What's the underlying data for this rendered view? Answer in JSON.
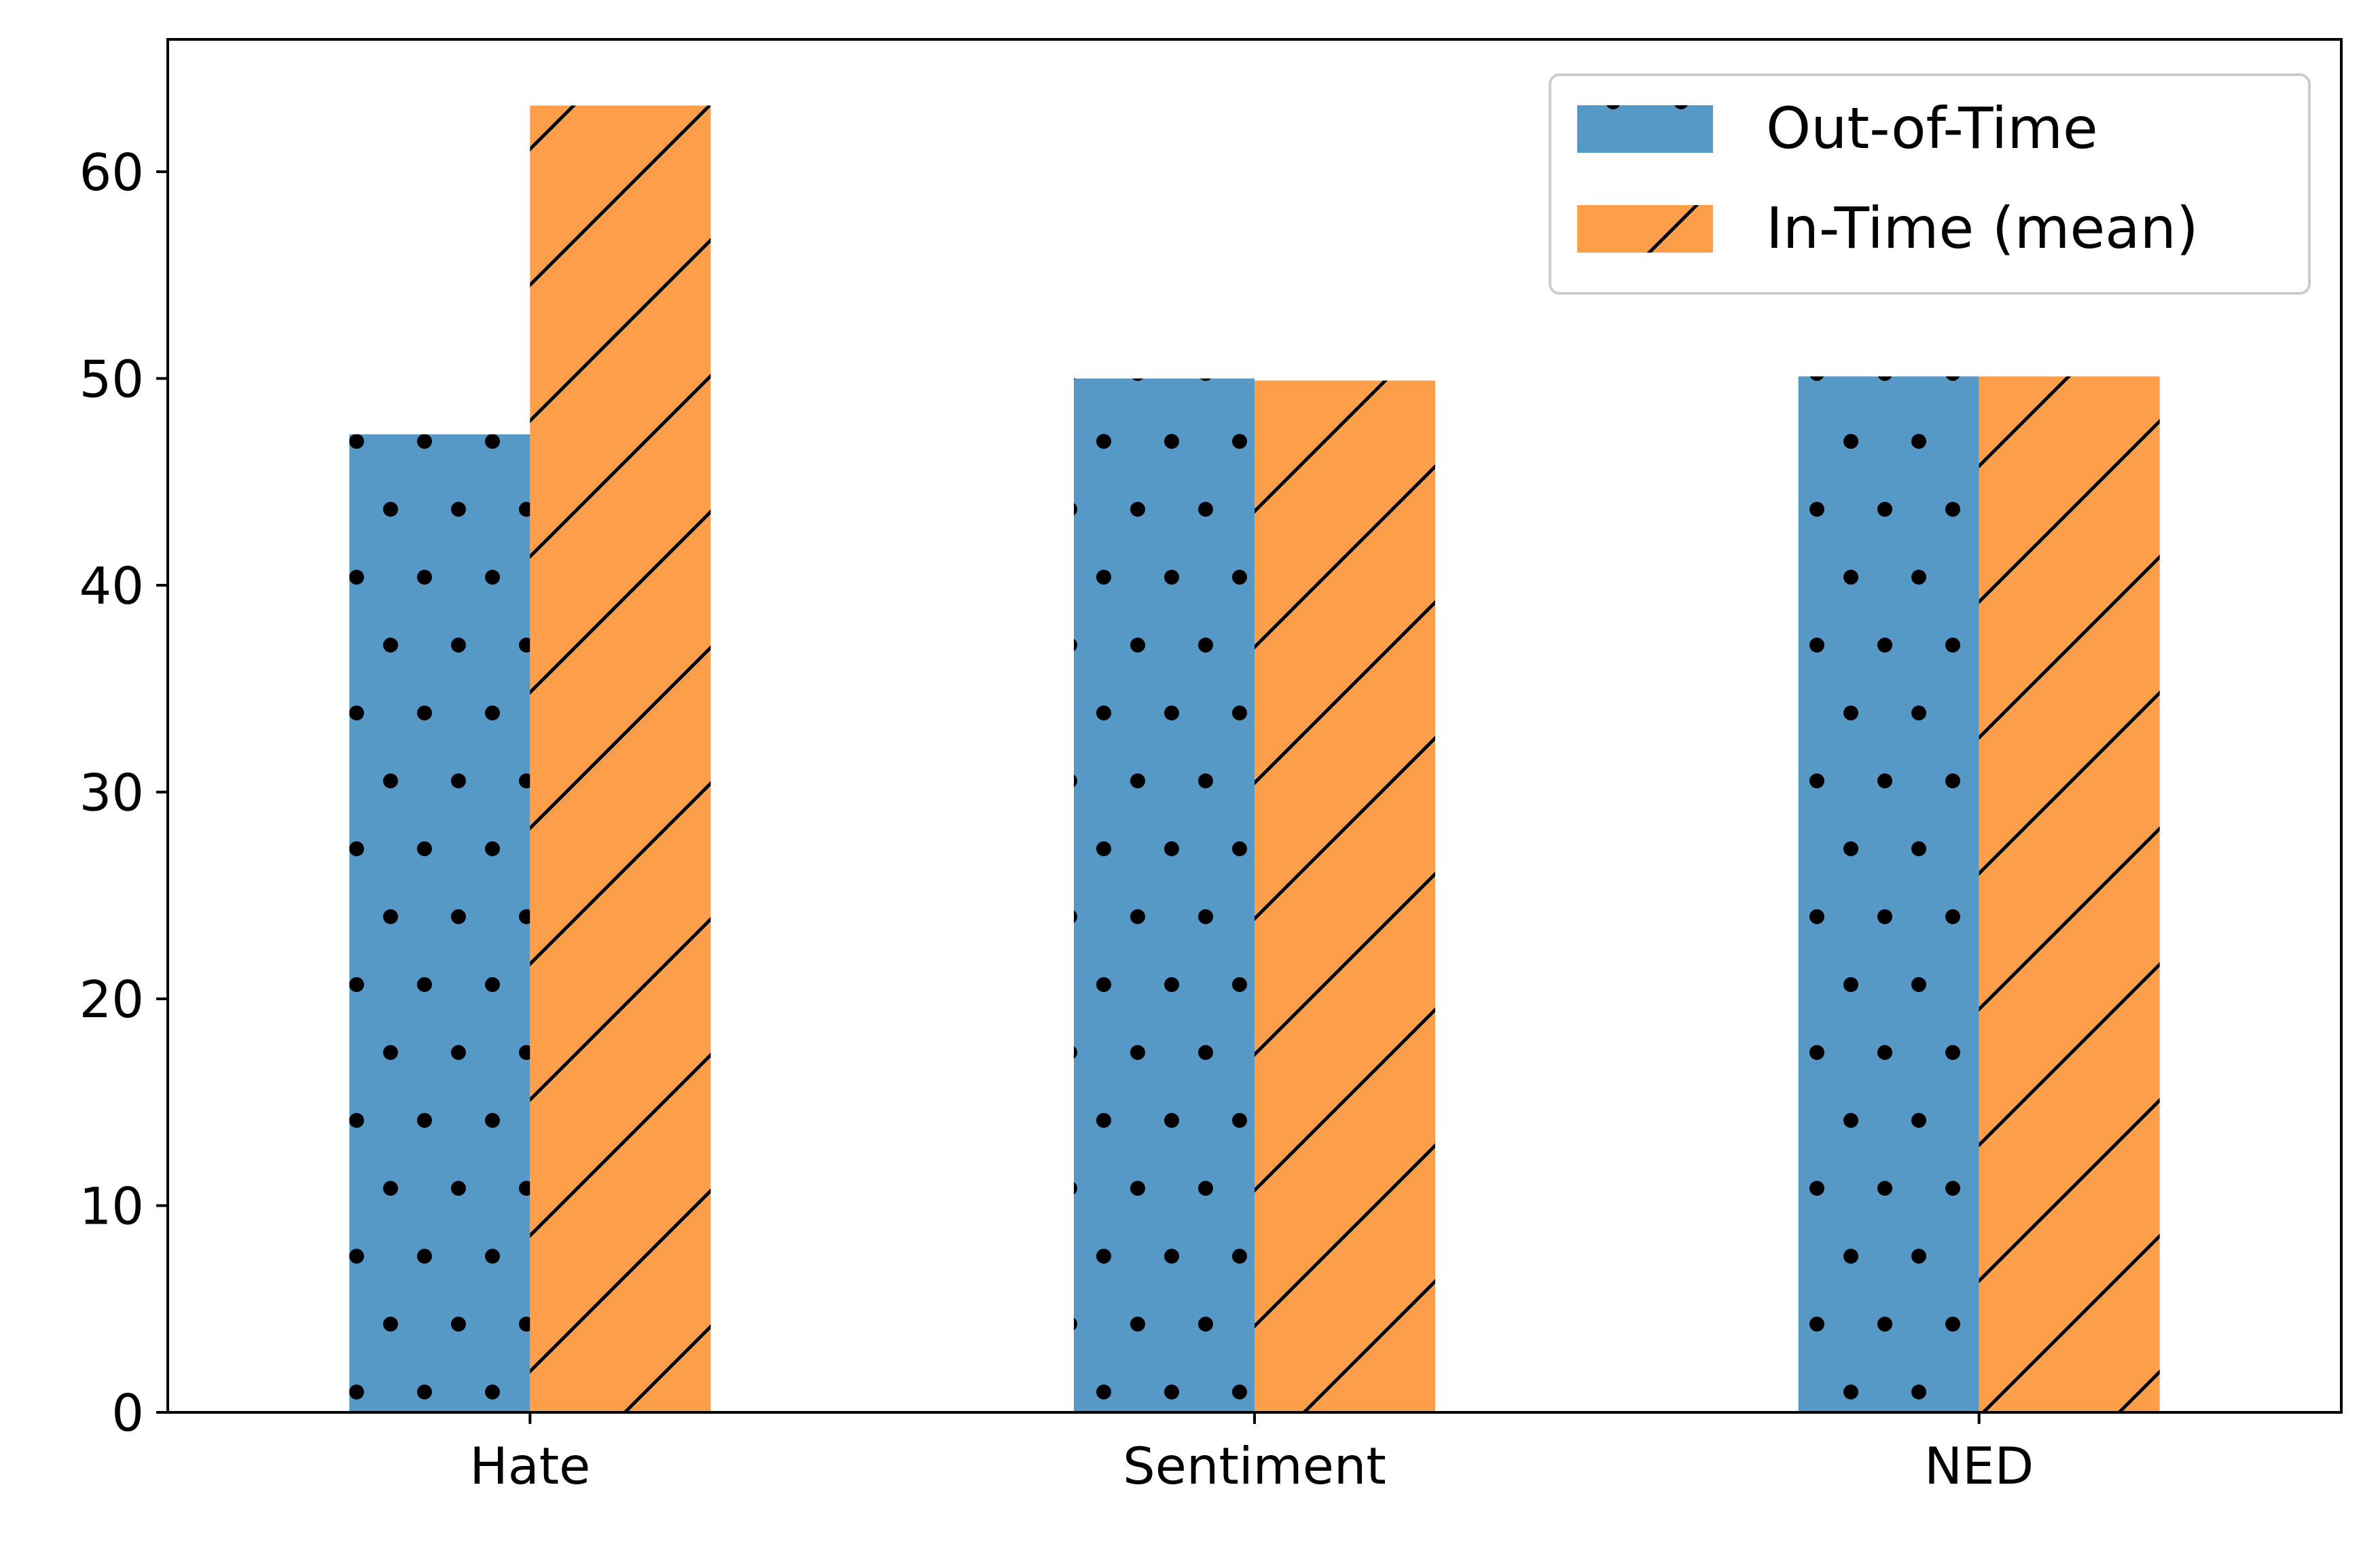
{
  "chart_data": {
    "type": "bar",
    "title": "",
    "xlabel": "",
    "ylabel": "",
    "categories": [
      "Hate",
      "Sentiment",
      "NED"
    ],
    "series": [
      {
        "name": "Out-of-Time",
        "values": [
          47.3,
          50.0,
          50.1
        ],
        "color": "#5799c6",
        "hatch": "dots"
      },
      {
        "name": "In-Time (mean)",
        "values": [
          63.2,
          49.9,
          50.1
        ],
        "color": "#fd9e4b",
        "hatch": "diagonal"
      }
    ],
    "ylim": [
      0,
      66.4
    ],
    "yticks": [
      0,
      10,
      20,
      30,
      40,
      50,
      60
    ],
    "legend_position": "top-right",
    "grid": false
  }
}
